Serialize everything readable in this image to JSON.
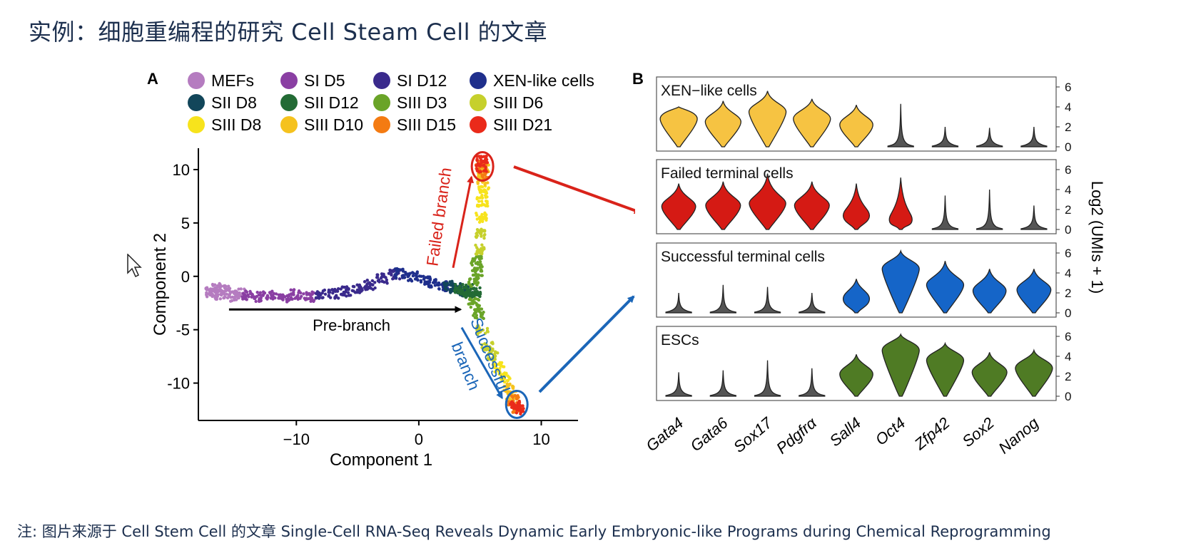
{
  "slide": {
    "title": "实例：细胞重编程的研究  Cell Steam Cell 的文章",
    "footnote": "注: 图片来源于 Cell Stem Cell 的文章  Single-Cell RNA-Seq Reveals Dynamic Early Embryonic-like Programs during Chemical Reprogramming"
  },
  "chart_data": [
    {
      "type": "scatter",
      "panel_label": "A",
      "xlabel": "Component 1",
      "ylabel": "Component 2",
      "xlim": [
        -18,
        13
      ],
      "ylim": [
        -13.5,
        12
      ],
      "xticks": [
        -10,
        0,
        10
      ],
      "yticks": [
        10,
        5,
        0,
        -5,
        -10
      ],
      "legend": {
        "placement": "top",
        "entries": [
          {
            "label": "MEFs",
            "color": "#b57cc0"
          },
          {
            "label": "SI D5",
            "color": "#8a3fa3"
          },
          {
            "label": "SI D12",
            "color": "#3a2a8c"
          },
          {
            "label": "XEN-like cells",
            "color": "#1f2f8c"
          },
          {
            "label": "SII D8",
            "color": "#12465a"
          },
          {
            "label": "SII D12",
            "color": "#236b35"
          },
          {
            "label": "SIII D3",
            "color": "#6aa428"
          },
          {
            "label": "SIII D6",
            "color": "#c6d02c"
          },
          {
            "label": "SIII D8",
            "color": "#f7e31c"
          },
          {
            "label": "SIII D10",
            "color": "#f5c21e"
          },
          {
            "label": "SIII D15",
            "color": "#f47b12"
          },
          {
            "label": "SIII D21",
            "color": "#ea2a1a"
          }
        ]
      },
      "annotations": {
        "pre_branch": "Pre-branch",
        "failed_branch": "Failed branch",
        "successful_branch_line1": "Successful",
        "successful_branch_line2": "branch"
      },
      "series": [
        {
          "name": "MEFs",
          "points": [
            [
              -17,
              -1.5
            ],
            [
              -16.6,
              -1.1
            ],
            [
              -16.2,
              -1.7
            ],
            [
              -15.8,
              -1.3
            ],
            [
              -15.2,
              -1.9
            ],
            [
              -14.6,
              -1.6
            ]
          ]
        },
        {
          "name": "SI D5",
          "points": [
            [
              -14,
              -1.8
            ],
            [
              -13,
              -1.9
            ],
            [
              -12,
              -1.8
            ],
            [
              -11,
              -2
            ],
            [
              -10,
              -1.7
            ],
            [
              -9,
              -1.9
            ]
          ]
        },
        {
          "name": "SI D12",
          "points": [
            [
              -8,
              -1.7
            ],
            [
              -7,
              -1.6
            ],
            [
              -6,
              -1.4
            ],
            [
              -5,
              -1.2
            ],
            [
              -4,
              -0.8
            ],
            [
              -3,
              -0.2
            ],
            [
              -2,
              0.2
            ]
          ]
        },
        {
          "name": "XEN-like cells",
          "points": [
            [
              -1.5,
              0.3
            ],
            [
              -0.5,
              0
            ],
            [
              0.5,
              -0.3
            ],
            [
              1.2,
              -0.6
            ],
            [
              2,
              -0.9
            ]
          ]
        },
        {
          "name": "SII D8",
          "points": [
            [
              2.5,
              -0.9
            ],
            [
              3,
              -1.1
            ],
            [
              3.6,
              -1.3
            ],
            [
              4,
              -1.4
            ]
          ]
        },
        {
          "name": "SII D12",
          "points": [
            [
              3.3,
              -1.2
            ],
            [
              3.8,
              -1.6
            ],
            [
              4.2,
              -1.2
            ],
            [
              4.6,
              -1.5
            ]
          ]
        },
        {
          "name": "SIII D3",
          "points": [
            [
              4.5,
              -0.5
            ],
            [
              4.8,
              0.5
            ],
            [
              4.5,
              -2.5
            ],
            [
              4.9,
              -3.5
            ],
            [
              4.7,
              1.5
            ]
          ]
        },
        {
          "name": "SIII D6",
          "points": [
            [
              5,
              2.5
            ],
            [
              5.1,
              4
            ],
            [
              5.2,
              -5
            ],
            [
              5.6,
              -6.5
            ],
            [
              6,
              -7.5
            ]
          ]
        },
        {
          "name": "SIII D8",
          "points": [
            [
              5.1,
              5.5
            ],
            [
              5.2,
              7
            ],
            [
              6.5,
              -8.5
            ],
            [
              7,
              -9.5
            ],
            [
              5.3,
              8
            ]
          ]
        },
        {
          "name": "SIII D10",
          "points": [
            [
              5.2,
              9
            ],
            [
              5.3,
              10
            ],
            [
              7.3,
              -10.5
            ],
            [
              7.6,
              -11.2
            ]
          ]
        },
        {
          "name": "SIII D15",
          "points": [
            [
              5.1,
              10.5
            ],
            [
              5.3,
              9.5
            ],
            [
              7.7,
              -11.6
            ],
            [
              8,
              -12.3
            ]
          ]
        },
        {
          "name": "SIII D21",
          "points": [
            [
              5.2,
              10.9
            ],
            [
              5.1,
              10.2
            ],
            [
              7.9,
              -12
            ],
            [
              8.2,
              -12.5
            ]
          ]
        }
      ]
    },
    {
      "type": "violin",
      "panel_label": "B",
      "ylabel": "Log2 (UMIs + 1)",
      "ylim": [
        0,
        6
      ],
      "yticks": [
        0,
        2,
        4,
        6
      ],
      "genes": [
        "Gata4",
        "Gata6",
        "Sox17",
        "Pdgfrα",
        "Sall4",
        "Oct4",
        "Zfp42",
        "Sox2",
        "Nanog"
      ],
      "panels": [
        {
          "title": "XEN−like cells",
          "color": "#f6c342",
          "values": [
            2.8,
            2.5,
            3.5,
            2.8,
            2.2,
            0.5,
            0.1,
            0.1,
            0.1
          ],
          "max": [
            4,
            4.6,
            5.6,
            4.8,
            4.2,
            4.3,
            2,
            1.9,
            2
          ]
        },
        {
          "title": "Failed terminal cells",
          "color": "#d51a14",
          "values": [
            2.3,
            2.4,
            2.6,
            2.4,
            1.4,
            1.0,
            0.5,
            0.1,
            0.1
          ],
          "max": [
            4.6,
            4.8,
            5.6,
            4.8,
            4.6,
            5.2,
            3.4,
            4,
            2.4
          ]
        },
        {
          "title": "Successful terminal cells",
          "color": "#1565c8",
          "values": [
            0.1,
            0.1,
            0.1,
            0.1,
            1.4,
            4.4,
            2.8,
            2.2,
            2.3
          ],
          "max": [
            2,
            2.8,
            2.6,
            2,
            3.4,
            6.2,
            5.2,
            4.4,
            4.4
          ]
        },
        {
          "title": "ESCs",
          "color": "#4f7b24",
          "values": [
            0.1,
            0.1,
            0.4,
            0.2,
            2.2,
            4.6,
            3.6,
            2.4,
            2.8
          ],
          "max": [
            2.4,
            2.6,
            3.6,
            2.8,
            4.2,
            6.2,
            5.3,
            4.4,
            4.6
          ]
        }
      ]
    }
  ]
}
